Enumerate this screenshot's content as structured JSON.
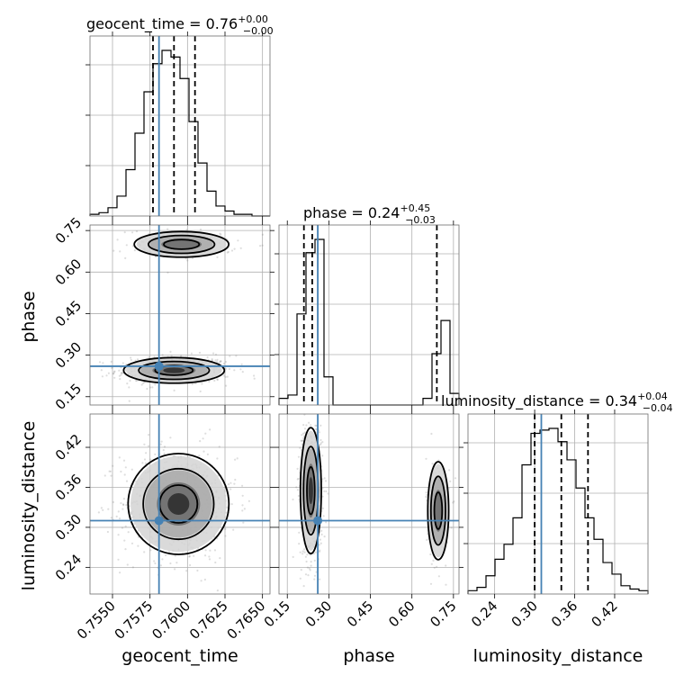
{
  "figure": {
    "kind": "corner plot"
  },
  "chart_data": {
    "type": "corner",
    "parameters": [
      {
        "name": "geocent_time",
        "label": "geocent_time",
        "title": "geocent_time = 0.76",
        "title_sup": "+0.00",
        "title_sub": "−0.00",
        "range": [
          0.7535,
          0.7655
        ],
        "ticks": [
          0.755,
          0.7575,
          0.76,
          0.7625,
          0.765
        ],
        "tick_labels": [
          "0.7550",
          "0.7575",
          "0.7600",
          "0.7625",
          "0.7650"
        ],
        "truth": 0.7581,
        "quantiles": [
          0.7577,
          0.7591,
          0.7605
        ]
      },
      {
        "name": "phase",
        "label": "phase",
        "title": "phase = 0.24",
        "title_sup": "+0.45",
        "title_sub": "−0.03",
        "range": [
          0.12,
          0.77
        ],
        "ticks": [
          0.15,
          0.3,
          0.45,
          0.6,
          0.75
        ],
        "tick_labels": [
          "0.15",
          "0.30",
          "0.45",
          "0.60",
          "0.75"
        ],
        "truth": 0.26,
        "quantiles": [
          0.21,
          0.24,
          0.69
        ]
      },
      {
        "name": "luminosity_distance",
        "label": "luminosity_distance",
        "title": "luminosity_distance = 0.34",
        "title_sup": "+0.04",
        "title_sub": "−0.04",
        "range": [
          0.2,
          0.47
        ],
        "ticks": [
          0.24,
          0.3,
          0.36,
          0.42
        ],
        "tick_labels": [
          "0.24",
          "0.30",
          "0.36",
          "0.42"
        ],
        "truth": 0.31,
        "quantiles": [
          0.3,
          0.34,
          0.38
        ]
      }
    ],
    "histograms": [
      {
        "param": "geocent_time",
        "edges_start": 0.7535,
        "bin_width": 0.0006,
        "counts": [
          1,
          2,
          5,
          12,
          28,
          50,
          75,
          92,
          100,
          96,
          83,
          57,
          32,
          15,
          6,
          3,
          1,
          1,
          0,
          0
        ]
      },
      {
        "param": "phase",
        "edges_start": 0.12,
        "bin_width": 0.0325,
        "counts": [
          4,
          6,
          55,
          92,
          100,
          17,
          0,
          0,
          0,
          0,
          0,
          0,
          0,
          0,
          0,
          0,
          4,
          31,
          51,
          7
        ]
      },
      {
        "param": "luminosity_distance",
        "edges_start": 0.2,
        "bin_width": 0.0135,
        "counts": [
          2,
          4,
          11,
          21,
          30,
          46,
          78,
          97,
          99,
          100,
          92,
          81,
          64,
          46,
          33,
          19,
          12,
          5,
          3,
          2
        ]
      }
    ],
    "grid": true,
    "truth_color": "#4682b4",
    "contour_color": "#000000"
  }
}
